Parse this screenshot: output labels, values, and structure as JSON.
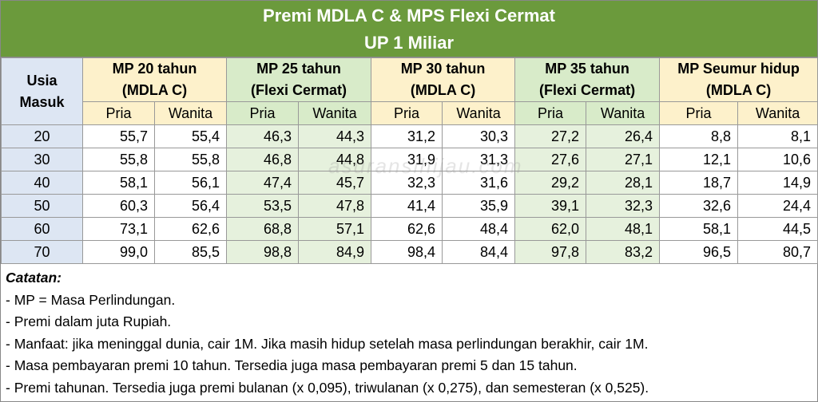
{
  "title": {
    "line1": "Premi MDLA C & MPS Flexi Cermat",
    "line2": "UP 1 Miliar"
  },
  "table": {
    "age_header": {
      "line1": "Usia",
      "line2": "Masuk"
    },
    "groups": [
      {
        "line1": "MP 20 tahun",
        "line2": "(MDLA C)",
        "sub": [
          "Pria",
          "Wanita"
        ]
      },
      {
        "line1": "MP 25 tahun",
        "line2": "(Flexi Cermat)",
        "sub": [
          "Pria",
          "Wanita"
        ]
      },
      {
        "line1": "MP 30 tahun",
        "line2": "(MDLA C)",
        "sub": [
          "Pria",
          "Wanita"
        ]
      },
      {
        "line1": "MP 35 tahun",
        "line2": "(Flexi Cermat)",
        "sub": [
          "Pria",
          "Wanita"
        ]
      },
      {
        "line1": "MP Seumur hidup",
        "line2": "(MDLA C)",
        "sub": [
          "Pria",
          "Wanita"
        ]
      }
    ],
    "rows": [
      [
        "20",
        "55,7",
        "55,4",
        "46,3",
        "44,3",
        "31,2",
        "30,3",
        "27,2",
        "26,4",
        "8,8",
        "8,1"
      ],
      [
        "30",
        "55,8",
        "55,8",
        "46,8",
        "44,8",
        "31,9",
        "31,3",
        "27,6",
        "27,1",
        "12,1",
        "10,6"
      ],
      [
        "40",
        "58,1",
        "56,1",
        "47,4",
        "45,7",
        "32,3",
        "31,6",
        "29,2",
        "28,1",
        "18,7",
        "14,9"
      ],
      [
        "50",
        "60,3",
        "56,4",
        "53,5",
        "47,8",
        "41,4",
        "35,9",
        "39,1",
        "32,3",
        "32,6",
        "24,4"
      ],
      [
        "60",
        "73,1",
        "62,6",
        "68,8",
        "57,1",
        "62,6",
        "48,4",
        "62,0",
        "48,1",
        "58,1",
        "44,5"
      ],
      [
        "70",
        "99,0",
        "85,5",
        "98,8",
        "84,9",
        "98,4",
        "84,4",
        "97,8",
        "83,2",
        "96,5",
        "80,7"
      ]
    ]
  },
  "watermark": "asuransihijau.com",
  "notes": {
    "heading": "Catatan:",
    "items": [
      "- MP = Masa Perlindungan.",
      "- Premi dalam juta Rupiah.",
      "- Manfaat: jika meninggal dunia, cair 1M. Jika masih hidup setelah masa perlindungan berakhir, cair 1M.",
      "- Masa pembayaran premi 10 tahun. Tersedia juga masa pembayaran premi 5 dan 15 tahun.",
      "- Premi tahunan. Tersedia juga premi bulanan (x 0,095), triwulanan (x 0,275), dan semesteran (x 0,525)."
    ]
  }
}
